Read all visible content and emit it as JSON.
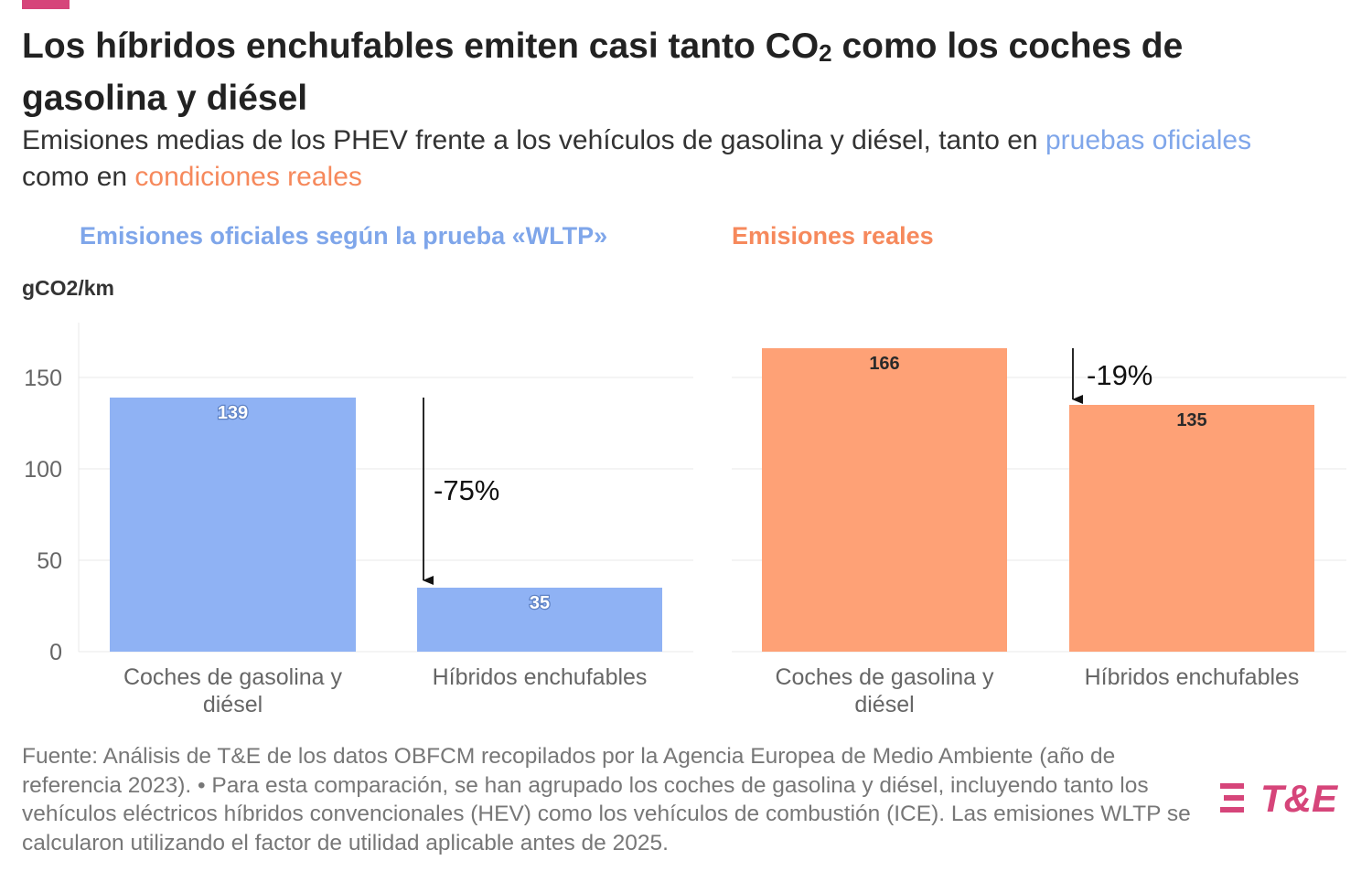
{
  "header": {
    "title_pre": "Los híbridos enchufables emiten casi tanto CO",
    "title_sub": "2",
    "title_post": " como los coches de gasolina y diésel",
    "subtitle_pre": "Emisiones medias de los PHEV frente a los vehículos de gasolina y diésel, tanto en ",
    "subtitle_hl1": "pruebas oficiales",
    "subtitle_mid": " como en ",
    "subtitle_hl2": "condiciones reales"
  },
  "colors": {
    "blue": "#8fb2f4",
    "orange": "#fea176",
    "brand": "#d6457a"
  },
  "chart_data": [
    {
      "type": "bar",
      "title": "Emisiones oficiales según la prueba «WLTP»",
      "ylabel": "gCO2/km",
      "ylim": [
        0,
        180
      ],
      "yticks": [
        0,
        50,
        100,
        150
      ],
      "grid": true,
      "categories": [
        "Coches de gasolina y diésel",
        "Híbridos enchufables"
      ],
      "values": [
        139,
        35
      ],
      "annotation": "-75%"
    },
    {
      "type": "bar",
      "title": "Emisiones reales",
      "ylim": [
        0,
        180
      ],
      "grid": true,
      "categories": [
        "Coches de gasolina y diésel",
        "Híbridos enchufables"
      ],
      "values": [
        166,
        135
      ],
      "annotation": "-19%"
    }
  ],
  "footer": {
    "source": "Fuente: Análisis de T&E de los datos OBFCM recopilados por la Agencia Europea de Medio Ambiente (año de referencia 2023). • Para esta comparación, se han agrupado los coches de gasolina y diésel, incluyendo tanto los vehículos eléctricos híbridos convencionales (HEV) como los vehículos de combustión (ICE). Las emisiones WLTP se calcularon utilizando el factor de utilidad aplicable antes de 2025."
  },
  "logo": {
    "text": "T&E"
  }
}
